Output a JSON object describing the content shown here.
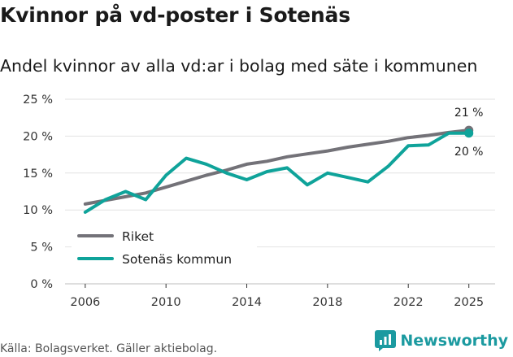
{
  "header": {
    "title": "Kvinnor på vd-poster i Sotenäs",
    "subtitle": "Andel kvinnor av alla vd:ar i bolag med säte i kommunen"
  },
  "footer": {
    "source": "Källa: Bolagsverket. Gäller aktiebolag.",
    "brand": "Newsworthy"
  },
  "colors": {
    "riket": "#737278",
    "sotenas": "#0fa39a",
    "grid": "#e2e2e2",
    "brand": "#1b9aa0"
  },
  "chart_data": {
    "type": "line",
    "title": "Kvinnor på vd-poster i Sotenäs",
    "subtitle": "Andel kvinnor av alla vd:ar i bolag med säte i kommunen",
    "xlabel": "",
    "ylabel": "",
    "x": [
      2006,
      2007,
      2008,
      2009,
      2010,
      2011,
      2012,
      2013,
      2014,
      2015,
      2016,
      2017,
      2018,
      2019,
      2020,
      2021,
      2022,
      2023,
      2024,
      2025
    ],
    "xlim": [
      2005,
      2026.3
    ],
    "ylim": [
      0,
      25
    ],
    "x_ticks": [
      2006,
      2010,
      2014,
      2018,
      2022,
      2025
    ],
    "x_tick_labels": [
      "2006",
      "2010",
      "2014",
      "2018",
      "2022",
      "2025"
    ],
    "y_ticks": [
      0,
      5,
      10,
      15,
      20,
      25
    ],
    "y_tick_labels": [
      "0 %",
      "5 %",
      "10 %",
      "15 %",
      "20 %",
      "25 %"
    ],
    "grid": true,
    "legend_position": "bottom-left",
    "series": [
      {
        "name": "Riket",
        "key": "riket",
        "values": [
          10.8,
          11.3,
          11.8,
          12.3,
          13.1,
          13.9,
          14.7,
          15.4,
          16.2,
          16.6,
          17.2,
          17.6,
          18.0,
          18.5,
          18.9,
          19.3,
          19.8,
          20.1,
          20.5,
          20.8
        ],
        "end_label": "21 %"
      },
      {
        "name": "Sotenäs kommun",
        "key": "sotenas",
        "values": [
          9.7,
          11.4,
          12.5,
          11.4,
          14.7,
          17.0,
          16.2,
          15.0,
          14.1,
          15.2,
          15.7,
          13.4,
          15.0,
          14.4,
          13.8,
          15.9,
          18.7,
          18.8,
          20.4,
          20.4
        ],
        "end_label": "20 %"
      }
    ]
  }
}
